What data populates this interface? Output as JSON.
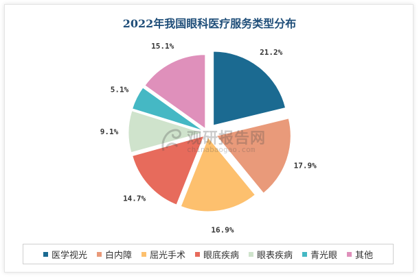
{
  "chart_data": {
    "type": "pie",
    "title": "2022年我国眼科医疗服务类型分布",
    "slices": [
      {
        "label": "医学视光",
        "value": 21.2,
        "display": "21.2%",
        "color": "#1b6a91",
        "explode": true
      },
      {
        "label": "白内障",
        "value": 17.9,
        "display": "17.9%",
        "color": "#e99a7a",
        "explode": true
      },
      {
        "label": "屈光手术",
        "value": 16.9,
        "display": "16.9%",
        "color": "#fdc06e",
        "explode": false
      },
      {
        "label": "眼底疾病",
        "value": 14.7,
        "display": "14.7%",
        "color": "#e76b5c",
        "explode": false
      },
      {
        "label": "眼表疾病",
        "value": 9.1,
        "display": "9.1%",
        "color": "#cfe3cc",
        "explode": false
      },
      {
        "label": "青光眼",
        "value": 5.1,
        "display": "5.1%",
        "color": "#45b8c4",
        "explode": false
      },
      {
        "label": "其他",
        "value": 15.1,
        "display": "15.1%",
        "color": "#df90bb",
        "explode": false
      }
    ],
    "legend_position": "bottom"
  },
  "watermark": {
    "brand": "观研报告网",
    "url": "chinabaogao.com",
    "icon": "dragon-logo-icon"
  }
}
